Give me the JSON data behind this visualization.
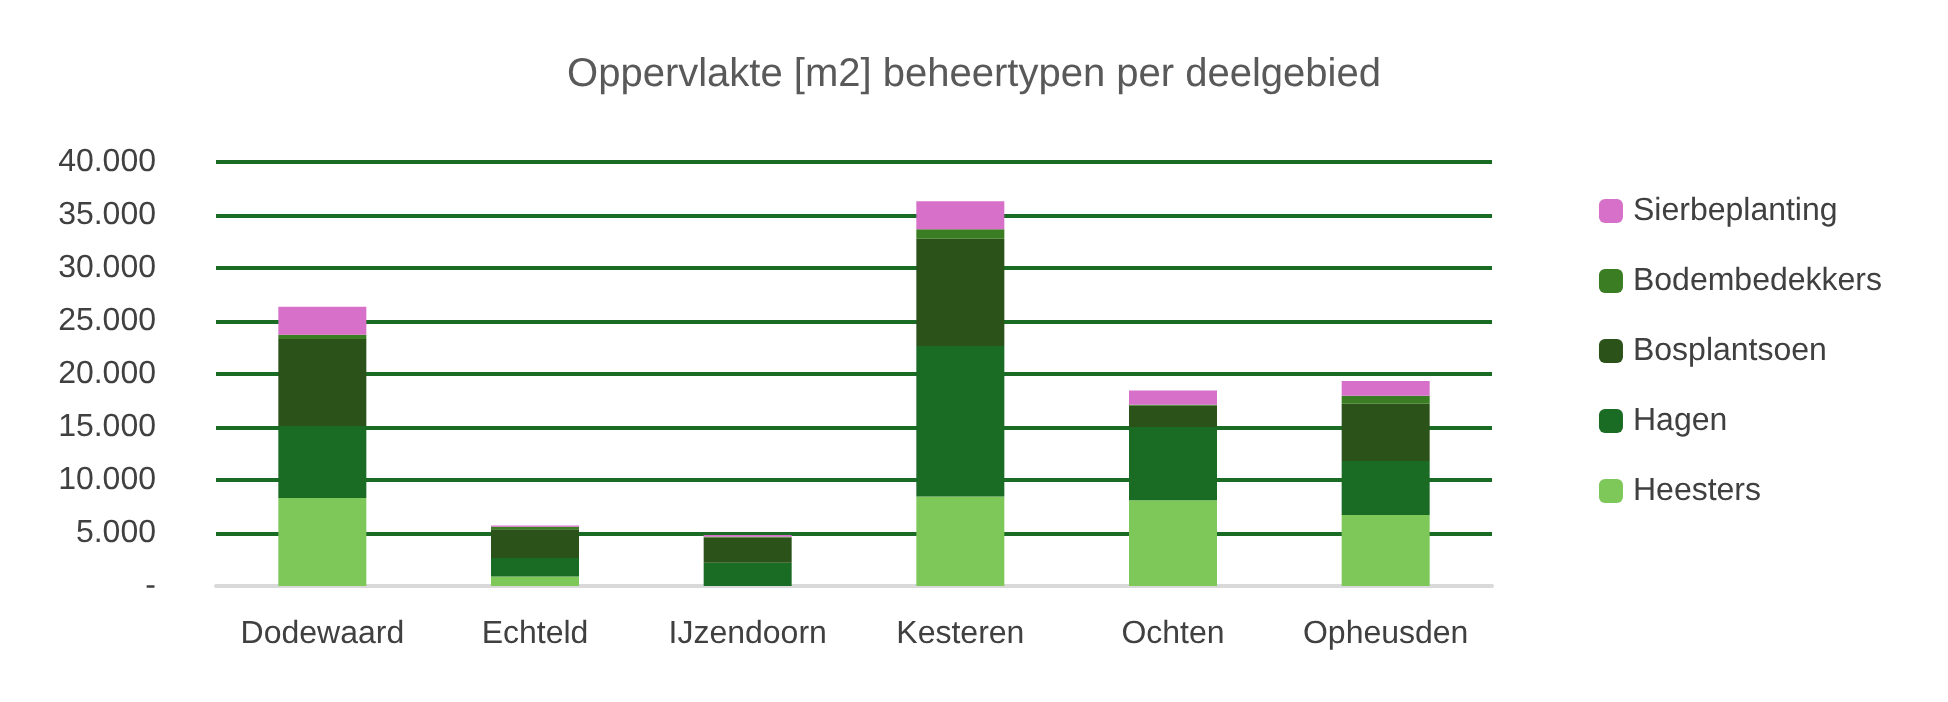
{
  "chart_data": {
    "type": "bar",
    "title": "Oppervlakte [m2] beheertypen per deelgebied",
    "categories": [
      "Dodewaard",
      "Echteld",
      "IJzendoorn",
      "Kesteren",
      "Ochten",
      "Opheusden"
    ],
    "stacked": true,
    "ylim": [
      0,
      40000
    ],
    "yticks": [
      {
        "value": 0,
        "label": "-"
      },
      {
        "value": 5000,
        "label": "5.000"
      },
      {
        "value": 10000,
        "label": "10.000"
      },
      {
        "value": 15000,
        "label": "15.000"
      },
      {
        "value": 20000,
        "label": "20.000"
      },
      {
        "value": 25000,
        "label": "25.000"
      },
      {
        "value": 30000,
        "label": "30.000"
      },
      {
        "value": 35000,
        "label": "35.000"
      },
      {
        "value": 40000,
        "label": "40.000"
      }
    ],
    "grid": "y",
    "legend": "right",
    "series": [
      {
        "name": "Heesters",
        "color": "#7ec85a",
        "values": [
          8300,
          900,
          0,
          8450,
          8100,
          6700
        ]
      },
      {
        "name": "Hagen",
        "color": "#1a6b24",
        "values": [
          6800,
          1750,
          2200,
          14200,
          6900,
          5100
        ]
      },
      {
        "name": "Bosplantsoen",
        "color": "#2a5219",
        "values": [
          8200,
          2700,
          2350,
          10100,
          2000,
          5400
        ]
      },
      {
        "name": "Bodembedekkers",
        "color": "#3a7d22",
        "values": [
          400,
          250,
          100,
          900,
          100,
          750
        ]
      },
      {
        "name": "Sierbeplanting",
        "color": "#d670c9",
        "values": [
          2650,
          100,
          150,
          2650,
          1350,
          1400
        ]
      }
    ]
  }
}
